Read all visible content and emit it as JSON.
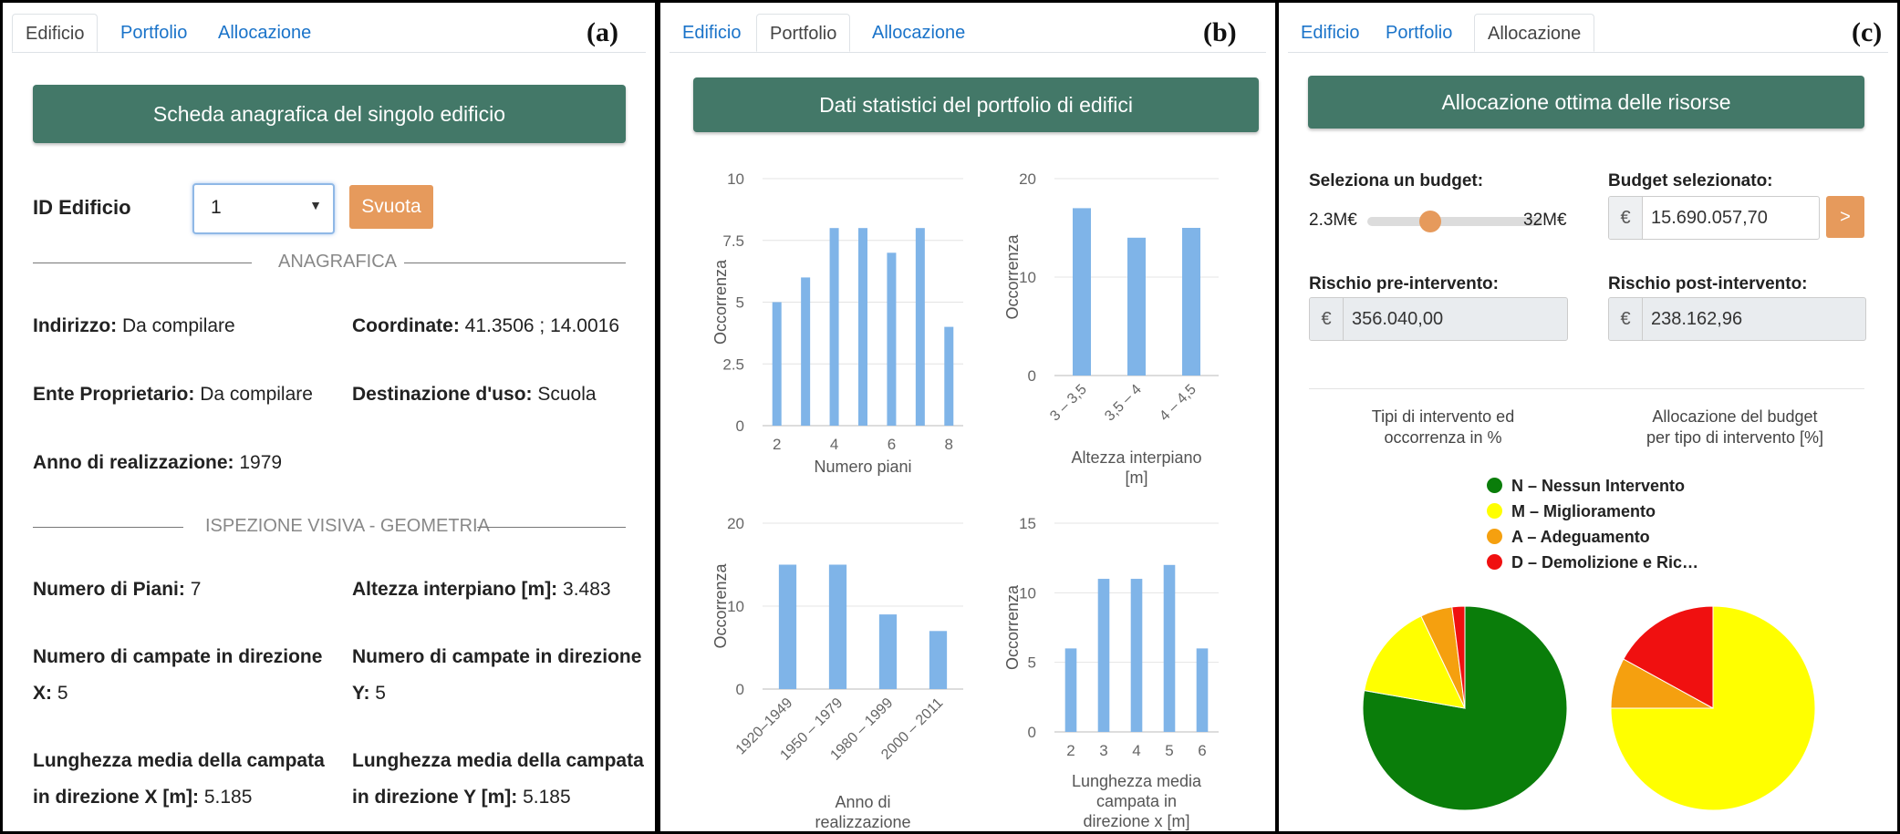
{
  "tabs": [
    "Edificio",
    "Portfolio",
    "Allocazione"
  ],
  "panel_a": {
    "letter": "(a)",
    "header": "Scheda anagrafica del singolo edificio",
    "id_label": "ID Edificio",
    "id_value": "1",
    "svuota": "Svuota",
    "section1": "ANAGRAFICA",
    "indirizzo_label": "Indirizzo:",
    "indirizzo_value": "Da compilare",
    "coordinate_label": "Coordinate:",
    "coordinate_value": "41.3506 ; 14.0016",
    "ente_label": "Ente Proprietario:",
    "ente_value": "Da compilare",
    "destinazione_label": "Destinazione d'uso:",
    "destinazione_value": "Scuola",
    "anno_label": "Anno di realizzazione:",
    "anno_value": "1979",
    "section2": "ISPEZIONE VISIVA - GEOMETRIA",
    "piani_label": "Numero di Piani:",
    "piani_value": "7",
    "altezza_label": "Altezza interpiano [m]:",
    "altezza_value": "3.483",
    "campate_x_label1": "Numero di campate in direzione",
    "campate_x_label2": "X:",
    "campate_x_value": "5",
    "campate_y_label1": "Numero di campate in direzione",
    "campate_y_label2": "Y:",
    "campate_y_value": "5",
    "lung_x_label1": "Lunghezza media della campata",
    "lung_x_label2": "in direzione X [m]:",
    "lung_x_value": "5.185",
    "lung_y_label1": "Lunghezza media della campata",
    "lung_y_label2": "in direzione Y [m]:",
    "lung_y_value": "5.185"
  },
  "panel_b": {
    "letter": "(b)",
    "header": "Dati statistici del portfolio di edifici"
  },
  "panel_c": {
    "letter": "(c)",
    "header": "Allocazione ottima delle risorse",
    "budget_label": "Seleziona un budget:",
    "budget_min": "2.3M€",
    "budget_max": "32M€",
    "budget_slider_fraction": 0.36,
    "budget_selected_label": "Budget selezionato:",
    "currency": "€",
    "budget_selected_value": "15.690.057,70",
    "go_button": ">",
    "rischio_pre_label": "Rischio pre-intervento:",
    "rischio_pre_value": "356.040,00",
    "rischio_post_label": "Rischio post-intervento:",
    "rischio_post_value": "238.162,96",
    "pie1_title_1": "Tipi di intervento ed",
    "pie1_title_2": "occorrenza in %",
    "pie2_title_1": "Allocazione del budget",
    "pie2_title_2": "per tipo di intervento [%]",
    "legend": [
      "N – Nessun Intervento",
      "M – Miglioramento",
      "A – Adeguamento",
      "D – Demolizione e Ric…"
    ],
    "colors": {
      "N": "#0a7d0a",
      "M": "#ffff00",
      "A": "#f5a00f",
      "D": "#f01010"
    }
  },
  "colors": {
    "header": "#437868",
    "accent": "#e69a5c",
    "bar": "#7fb4e8",
    "link": "#1a73c9"
  },
  "chart_data": [
    {
      "type": "bar",
      "categories": [
        "2",
        "3",
        "4",
        "5",
        "6",
        "7",
        "8"
      ],
      "x": [
        2,
        3,
        4,
        5,
        6,
        7,
        8
      ],
      "values": [
        5,
        6,
        8,
        8,
        7,
        8,
        4
      ],
      "xlabel": "Numero piani",
      "ylabel": "Occorrenza",
      "ylim": [
        0,
        10
      ],
      "yticks": [
        "0",
        "2.5",
        "5",
        "7.5",
        "10"
      ],
      "xticks": [
        "2",
        "4",
        "6",
        "8"
      ]
    },
    {
      "type": "bar",
      "categories": [
        "3 – 3,5",
        "3,5 – 4",
        "4 – 4,5"
      ],
      "values": [
        17,
        14,
        15
      ],
      "xlabel": "Altezza interpiano [m]",
      "ylabel": "Occorrenza",
      "ylim": [
        0,
        20
      ],
      "yticks": [
        "0",
        "10",
        "20"
      ]
    },
    {
      "type": "bar",
      "categories": [
        "1920–1949",
        "1950 – 1979",
        "1980 – 1999",
        "2000 – 2011"
      ],
      "values": [
        15,
        15,
        9,
        7
      ],
      "xlabel": "Anno di realizzazione",
      "ylabel": "Occorrenza",
      "ylim": [
        0,
        20
      ],
      "yticks": [
        "0",
        "10",
        "20"
      ]
    },
    {
      "type": "bar",
      "categories": [
        "2",
        "3",
        "4",
        "5",
        "6"
      ],
      "values": [
        6,
        11,
        11,
        12,
        6
      ],
      "xlabel": "Lunghezza media campata in direzione x [m]",
      "ylabel": "Occorrenza",
      "ylim": [
        0,
        15
      ],
      "yticks": [
        "0",
        "5",
        "10",
        "15"
      ]
    },
    {
      "type": "pie",
      "title": "Tipi di intervento ed occorrenza in %",
      "labels": [
        "N – Nessun Intervento",
        "M – Miglioramento",
        "A – Adeguamento",
        "D – Demolizione e Ric…"
      ],
      "values": [
        77,
        15,
        5,
        2
      ]
    },
    {
      "type": "pie",
      "title": "Allocazione del budget per tipo di intervento [%]",
      "labels": [
        "N – Nessun Intervento",
        "M – Miglioramento",
        "A – Adeguamento",
        "D – Demolizione e Ric…"
      ],
      "values": [
        0,
        75,
        8,
        17
      ]
    }
  ]
}
